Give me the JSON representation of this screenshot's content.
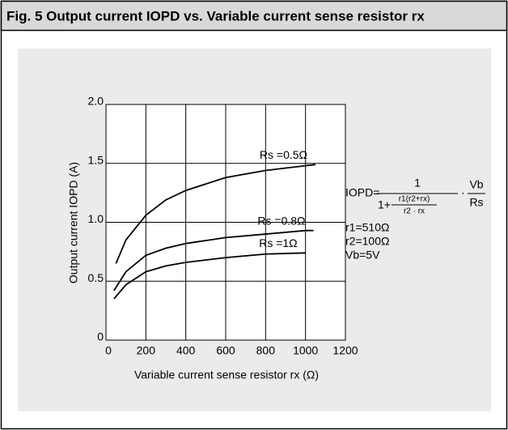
{
  "chart_data": {
    "type": "line",
    "title": "Fig. 5  Output current IOPD vs. Variable current sense resistor rx",
    "x_label": "Variable current sense resistor rx (Ω)",
    "y_label": "Output current IOPD (A)",
    "xlim": [
      0,
      1200
    ],
    "xticks": [
      0,
      200,
      400,
      600,
      800,
      1000,
      1200
    ],
    "ylim": [
      0,
      2
    ],
    "yticks": [
      0,
      0.5,
      {
        "value": 1,
        "label": "1.0"
      },
      1.5,
      {
        "value": 2,
        "label": "2.0"
      }
    ],
    "grid": true,
    "series": [
      {
        "name": "Rs =0.5Ω",
        "color": "#000000",
        "x": [
          50,
          100,
          200,
          300,
          400,
          600,
          800,
          1000,
          1050
        ],
        "values": [
          0.65,
          0.85,
          1.06,
          1.19,
          1.27,
          1.38,
          1.44,
          1.48,
          1.49
        ]
      },
      {
        "name": "Rs =0.8Ω",
        "color": "#000000",
        "x": [
          40,
          100,
          200,
          300,
          400,
          600,
          800,
          1000,
          1040
        ],
        "values": [
          0.42,
          0.58,
          0.72,
          0.78,
          0.82,
          0.87,
          0.9,
          0.93,
          0.93
        ]
      },
      {
        "name": "Rs =1Ω",
        "color": "#000000",
        "x": [
          40,
          100,
          200,
          300,
          400,
          600,
          800,
          1000
        ],
        "values": [
          0.35,
          0.47,
          0.58,
          0.63,
          0.66,
          0.7,
          0.73,
          0.74
        ]
      }
    ],
    "annotations": {
      "lhs": "IOPD=",
      "num": "1",
      "one_plus": "1+",
      "inner_num": "r1(r2+rx)",
      "inner_den": "r2 · rx",
      "dot": "·",
      "vb": "Vb",
      "rs": "Rs",
      "r1": "r1=510Ω",
      "r2": "r2=100Ω",
      "vbval": "Vb=5V"
    }
  }
}
